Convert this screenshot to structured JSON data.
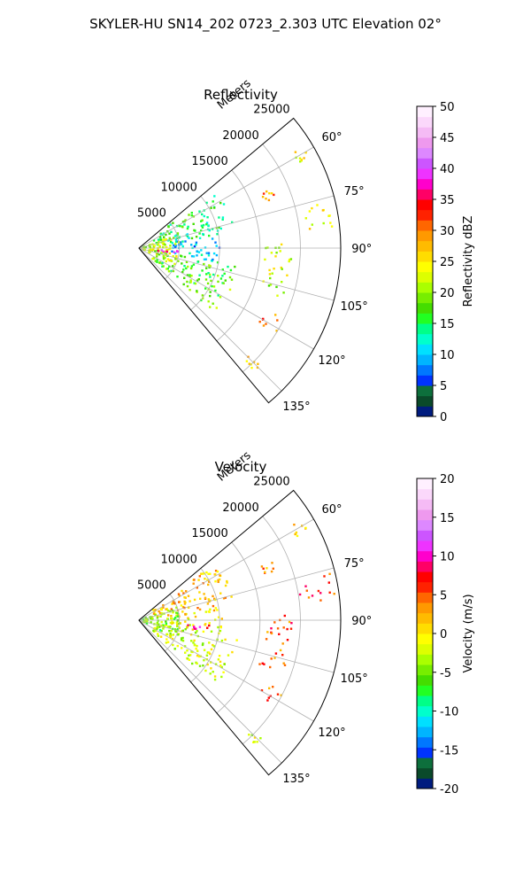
{
  "suptitle": "SKYLER-HU  SN14_202  0723_2.303 UTC Elevation 02°",
  "colors": {
    "reflectivity_scale": [
      "#001c7f",
      "#0a4a2a",
      "#0d6f3c",
      "#0033ff",
      "#0077ff",
      "#00b4ff",
      "#00e0ff",
      "#00ffcc",
      "#00ff88",
      "#22ff22",
      "#44dd00",
      "#77ee00",
      "#aaff00",
      "#ddff00",
      "#ffff00",
      "#ffdd00",
      "#ffbb00",
      "#ff9900",
      "#ff6600",
      "#ff2200",
      "#ff0000",
      "#ff0066",
      "#ff00cc",
      "#ee33ff",
      "#cc55ff",
      "#dd88ff",
      "#ee99ee",
      "#f5bbf5",
      "#fbd8fb",
      "#fff0ff"
    ],
    "velocity_scale": [
      "#001c7f",
      "#0a4a2a",
      "#0d6f3c",
      "#0033ff",
      "#0077ff",
      "#00b4ff",
      "#00e0ff",
      "#00ffcc",
      "#00ff88",
      "#22ff22",
      "#44dd00",
      "#77ee00",
      "#aaff00",
      "#ddff00",
      "#ffff00",
      "#ffdd00",
      "#ffbb00",
      "#ff9900",
      "#ff6600",
      "#ff2200",
      "#ff0000",
      "#ff0066",
      "#ff00cc",
      "#ee33ff",
      "#cc55ff",
      "#dd88ff",
      "#ee99ee",
      "#f5bbf5",
      "#fbd8fb",
      "#fff0ff"
    ]
  },
  "chart_data": [
    {
      "type": "heatmap",
      "projection": "polar-sector",
      "title": "Reflectivity",
      "radial_label": "Meters",
      "theta_range_deg": [
        50,
        140
      ],
      "r_max": 25000,
      "r_ticks": [
        5000,
        10000,
        15000,
        20000,
        25000
      ],
      "r_tick_labels": [
        "5000",
        "10000",
        "15000",
        "20000",
        "25000"
      ],
      "theta_ticks": [
        60,
        75,
        90,
        105,
        120,
        135
      ],
      "theta_tick_labels": [
        "60°",
        "75°",
        "90°",
        "105°",
        "120°",
        "135°"
      ],
      "grid": true,
      "colorbar": {
        "label": "Reflectivity dBZ",
        "range": [
          0,
          50
        ],
        "ticks": [
          0,
          5,
          10,
          15,
          20,
          25,
          30,
          35,
          40,
          45,
          50
        ]
      },
      "echoes": [
        {
          "theta": [
            53,
            80
          ],
          "r": [
            2000,
            12000
          ],
          "value": 15
        },
        {
          "theta": [
            80,
            100
          ],
          "r": [
            4000,
            10500
          ],
          "value": 10
        },
        {
          "theta": [
            100,
            130
          ],
          "r": [
            2000,
            12500
          ],
          "value": 18
        },
        {
          "theta": [
            70,
            115
          ],
          "r": [
            500,
            5000
          ],
          "value": 22
        },
        {
          "theta": [
            94,
            99
          ],
          "r": [
            1500,
            5000
          ],
          "value": 38
        },
        {
          "theta": [
            58,
            62
          ],
          "r": [
            22000,
            24000
          ],
          "value": 25
        },
        {
          "theta": [
            66,
            70
          ],
          "r": [
            16500,
            18000
          ],
          "value": 30
        },
        {
          "theta": [
            76,
            84
          ],
          "r": [
            20000,
            24500
          ],
          "value": 24
        },
        {
          "theta": [
            88,
            110
          ],
          "r": [
            15500,
            19000
          ],
          "value": 22
        },
        {
          "theta": [
            116,
            122
          ],
          "r": [
            17500,
            20000
          ],
          "value": 30
        },
        {
          "theta": [
            133,
            137
          ],
          "r": [
            19000,
            21000
          ],
          "value": 26
        }
      ]
    },
    {
      "type": "heatmap",
      "projection": "polar-sector",
      "title": "Velocity",
      "radial_label": "Meters",
      "theta_range_deg": [
        50,
        140
      ],
      "r_max": 25000,
      "r_ticks": [
        5000,
        10000,
        15000,
        20000,
        25000
      ],
      "r_tick_labels": [
        "5000",
        "10000",
        "15000",
        "20000",
        "25000"
      ],
      "theta_ticks": [
        60,
        75,
        90,
        105,
        120,
        135
      ],
      "theta_tick_labels": [
        "60°",
        "75°",
        "90°",
        "105°",
        "120°",
        "135°"
      ],
      "grid": true,
      "colorbar": {
        "label": "Velocity (m/s)",
        "range": [
          -20,
          20
        ],
        "ticks": [
          -20,
          -15,
          -10,
          -5,
          0,
          5,
          10,
          15,
          20
        ]
      },
      "echoes": [
        {
          "theta": [
            53,
            80
          ],
          "r": [
            2000,
            12000
          ],
          "value": 2
        },
        {
          "theta": [
            80,
            100
          ],
          "r": [
            4000,
            10500
          ],
          "value": 0
        },
        {
          "theta": [
            100,
            130
          ],
          "r": [
            2000,
            12500
          ],
          "value": -2
        },
        {
          "theta": [
            70,
            115
          ],
          "r": [
            500,
            5000
          ],
          "value": -5
        },
        {
          "theta": [
            94,
            99
          ],
          "r": [
            6000,
            9000
          ],
          "value": 10
        },
        {
          "theta": [
            58,
            62
          ],
          "r": [
            22000,
            24000
          ],
          "value": 2
        },
        {
          "theta": [
            66,
            70
          ],
          "r": [
            16500,
            18000
          ],
          "value": 3
        },
        {
          "theta": [
            76,
            84
          ],
          "r": [
            20000,
            24500
          ],
          "value": 6
        },
        {
          "theta": [
            88,
            110
          ],
          "r": [
            15500,
            19000
          ],
          "value": 5
        },
        {
          "theta": [
            116,
            122
          ],
          "r": [
            17500,
            20000
          ],
          "value": 4
        },
        {
          "theta": [
            133,
            137
          ],
          "r": [
            19000,
            21000
          ],
          "value": -2
        }
      ]
    }
  ]
}
